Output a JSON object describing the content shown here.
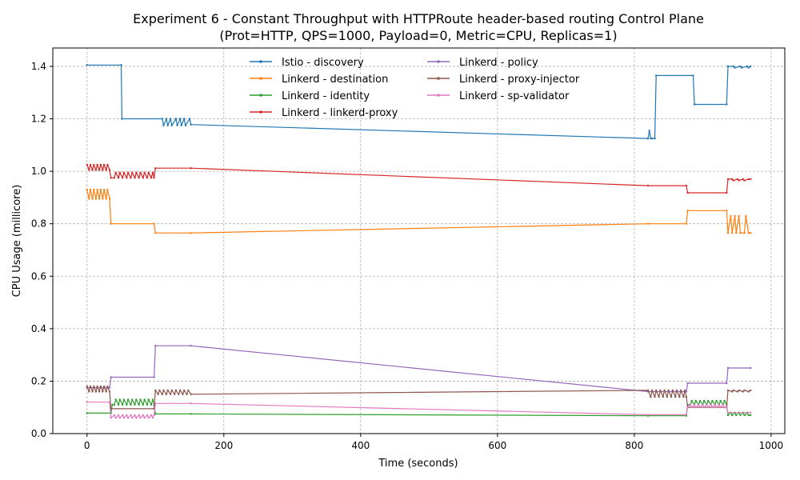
{
  "chart_data": {
    "type": "line",
    "title": "Experiment 6 - Constant Throughput with HTTPRoute header-based routing Control Plane",
    "subtitle": "(Prot=HTTP, QPS=1000, Payload=0, Metric=CPU, Replicas=1)",
    "xlabel": "Time (seconds)",
    "ylabel": "CPU Usage (millicore)",
    "xlim": [
      -50,
      1020
    ],
    "ylim": [
      0.0,
      1.47
    ],
    "xticks": [
      0,
      200,
      400,
      600,
      800,
      1000
    ],
    "yticks": [
      0.0,
      0.2,
      0.4,
      0.6,
      0.8,
      1.0,
      1.2,
      1.4
    ],
    "xtick_labels": [
      "0",
      "200",
      "400",
      "600",
      "800",
      "1000"
    ],
    "ytick_labels": [
      "0.0",
      "0.2",
      "0.4",
      "0.6",
      "0.8",
      "1.0",
      "1.2",
      "1.4"
    ],
    "grid": true,
    "legend": "upper center, two columns",
    "series": [
      {
        "name": "Istio - discovery",
        "color": "#1f77b4",
        "x": [
          0,
          50,
          51,
          110,
          112,
          116,
          118,
          122,
          124,
          130,
          132,
          136,
          138,
          142,
          144,
          150,
          152,
          820,
          822,
          824,
          826,
          830,
          832,
          886,
          888,
          935,
          937,
          945,
          947,
          955,
          957,
          965,
          967,
          970
        ],
        "y": [
          1.405,
          1.405,
          1.2,
          1.2,
          1.175,
          1.2,
          1.175,
          1.2,
          1.175,
          1.2,
          1.175,
          1.2,
          1.175,
          1.2,
          1.175,
          1.2,
          1.178,
          1.125,
          1.155,
          1.125,
          1.125,
          1.125,
          1.365,
          1.365,
          1.255,
          1.255,
          1.4,
          1.4,
          1.395,
          1.4,
          1.395,
          1.4,
          1.395,
          1.4
        ]
      },
      {
        "name": "Linkerd - destination",
        "color": "#ff7f0e",
        "x": [
          0,
          3,
          5,
          8,
          10,
          13,
          15,
          18,
          20,
          23,
          25,
          28,
          30,
          33,
          35,
          98,
          100,
          152,
          820,
          876,
          878,
          935,
          937,
          941,
          943,
          947,
          949,
          953,
          955,
          961,
          963,
          967,
          970
        ],
        "y": [
          0.93,
          0.895,
          0.93,
          0.895,
          0.93,
          0.895,
          0.93,
          0.895,
          0.93,
          0.895,
          0.93,
          0.895,
          0.93,
          0.895,
          0.8,
          0.8,
          0.765,
          0.765,
          0.8,
          0.8,
          0.85,
          0.85,
          0.765,
          0.83,
          0.765,
          0.83,
          0.765,
          0.83,
          0.765,
          0.765,
          0.83,
          0.765,
          0.765
        ]
      },
      {
        "name": "Linkerd - identity",
        "color": "#2ca02c",
        "x": [
          0,
          35,
          37,
          40,
          42,
          46,
          48,
          52,
          54,
          58,
          60,
          64,
          66,
          70,
          72,
          76,
          78,
          82,
          84,
          88,
          90,
          94,
          96,
          98,
          100,
          152,
          820,
          876,
          878,
          882,
          884,
          888,
          890,
          894,
          896,
          900,
          902,
          906,
          908,
          912,
          914,
          918,
          920,
          924,
          926,
          930,
          932,
          935,
          937,
          941,
          943,
          947,
          949,
          953,
          955,
          959,
          961,
          965,
          967,
          970
        ],
        "y": [
          0.078,
          0.078,
          0.11,
          0.11,
          0.13,
          0.11,
          0.13,
          0.11,
          0.13,
          0.11,
          0.13,
          0.11,
          0.13,
          0.11,
          0.13,
          0.11,
          0.13,
          0.11,
          0.13,
          0.11,
          0.13,
          0.11,
          0.13,
          0.11,
          0.075,
          0.075,
          0.068,
          0.068,
          0.11,
          0.11,
          0.125,
          0.11,
          0.125,
          0.11,
          0.125,
          0.11,
          0.125,
          0.11,
          0.125,
          0.11,
          0.125,
          0.11,
          0.125,
          0.11,
          0.125,
          0.11,
          0.125,
          0.11,
          0.07,
          0.08,
          0.07,
          0.08,
          0.07,
          0.08,
          0.07,
          0.08,
          0.07,
          0.08,
          0.07,
          0.07
        ]
      },
      {
        "name": "Linkerd - linkerd-proxy",
        "color": "#d62728",
        "x": [
          0,
          3,
          5,
          8,
          10,
          13,
          15,
          18,
          20,
          23,
          25,
          28,
          30,
          33,
          35,
          40,
          42,
          46,
          48,
          52,
          54,
          58,
          60,
          64,
          66,
          70,
          72,
          76,
          78,
          82,
          84,
          88,
          90,
          94,
          96,
          98,
          100,
          152,
          820,
          876,
          878,
          935,
          937,
          943,
          945,
          951,
          953,
          959,
          961,
          967,
          970
        ],
        "y": [
          1.025,
          1.005,
          1.025,
          1.005,
          1.025,
          1.005,
          1.025,
          1.005,
          1.025,
          1.005,
          1.025,
          1.005,
          1.025,
          1.005,
          0.975,
          0.975,
          0.995,
          0.975,
          0.995,
          0.975,
          0.995,
          0.975,
          0.995,
          0.975,
          0.995,
          0.975,
          0.995,
          0.975,
          0.995,
          0.975,
          0.995,
          0.975,
          0.995,
          0.975,
          0.995,
          0.975,
          1.012,
          1.012,
          0.945,
          0.945,
          0.918,
          0.918,
          0.97,
          0.97,
          0.965,
          0.97,
          0.965,
          0.97,
          0.965,
          0.97,
          0.97
        ]
      },
      {
        "name": "Linkerd - policy",
        "color": "#9467bd",
        "x": [
          0,
          33,
          35,
          98,
          100,
          152,
          820,
          876,
          878,
          935,
          937,
          970
        ],
        "y": [
          0.175,
          0.175,
          0.215,
          0.215,
          0.335,
          0.335,
          0.16,
          0.16,
          0.192,
          0.192,
          0.25,
          0.25
        ]
      },
      {
        "name": "Linkerd - proxy-injector",
        "color": "#8c564b",
        "x": [
          0,
          3,
          5,
          8,
          10,
          13,
          15,
          18,
          20,
          23,
          25,
          28,
          30,
          33,
          35,
          98,
          100,
          104,
          106,
          110,
          112,
          116,
          118,
          122,
          124,
          128,
          130,
          134,
          136,
          140,
          142,
          146,
          148,
          152,
          820,
          824,
          826,
          830,
          832,
          836,
          838,
          842,
          844,
          848,
          850,
          854,
          856,
          860,
          862,
          866,
          868,
          872,
          874,
          876,
          878,
          935,
          937,
          943,
          945,
          951,
          953,
          959,
          961,
          967,
          970
        ],
        "y": [
          0.18,
          0.16,
          0.18,
          0.16,
          0.18,
          0.16,
          0.18,
          0.16,
          0.18,
          0.16,
          0.18,
          0.16,
          0.18,
          0.16,
          0.095,
          0.095,
          0.165,
          0.15,
          0.165,
          0.15,
          0.165,
          0.15,
          0.165,
          0.15,
          0.165,
          0.15,
          0.165,
          0.15,
          0.165,
          0.15,
          0.165,
          0.15,
          0.165,
          0.15,
          0.165,
          0.14,
          0.165,
          0.14,
          0.165,
          0.14,
          0.165,
          0.14,
          0.165,
          0.14,
          0.165,
          0.14,
          0.165,
          0.14,
          0.165,
          0.14,
          0.165,
          0.14,
          0.165,
          0.14,
          0.1,
          0.1,
          0.165,
          0.16,
          0.165,
          0.16,
          0.165,
          0.16,
          0.165,
          0.16,
          0.165
        ]
      },
      {
        "name": "Linkerd - sp-validator",
        "color": "#e377c2",
        "x": [
          0,
          33,
          35,
          40,
          42,
          46,
          48,
          52,
          54,
          58,
          60,
          64,
          66,
          70,
          72,
          76,
          78,
          82,
          84,
          88,
          90,
          94,
          96,
          98,
          100,
          152,
          820,
          876,
          878,
          882,
          884,
          888,
          890,
          894,
          896,
          900,
          902,
          906,
          908,
          912,
          914,
          918,
          920,
          924,
          926,
          930,
          932,
          935,
          937,
          970
        ],
        "y": [
          0.12,
          0.12,
          0.06,
          0.07,
          0.06,
          0.07,
          0.06,
          0.07,
          0.06,
          0.07,
          0.06,
          0.07,
          0.06,
          0.07,
          0.06,
          0.07,
          0.06,
          0.07,
          0.06,
          0.07,
          0.06,
          0.07,
          0.06,
          0.07,
          0.115,
          0.115,
          0.072,
          0.072,
          0.1,
          0.11,
          0.1,
          0.11,
          0.1,
          0.11,
          0.1,
          0.11,
          0.1,
          0.11,
          0.1,
          0.11,
          0.1,
          0.11,
          0.1,
          0.11,
          0.1,
          0.11,
          0.1,
          0.1,
          0.08,
          0.08
        ]
      }
    ]
  }
}
